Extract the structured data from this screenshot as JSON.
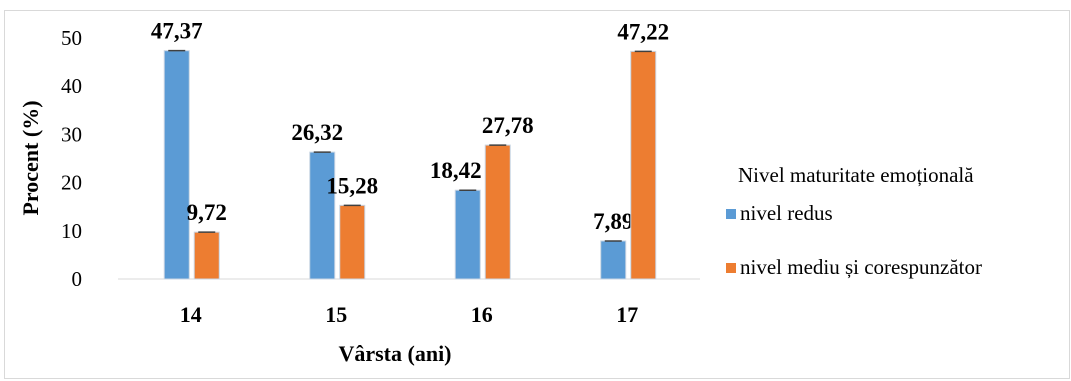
{
  "chart_data": {
    "type": "bar",
    "xlabel": "Vârsta (ani)",
    "ylabel": "Procent (%)",
    "ylim": [
      0,
      50
    ],
    "yticks": [
      0,
      10,
      20,
      30,
      40,
      50
    ],
    "grid": false,
    "legend_position": "right",
    "legend_title": "Nivel maturitate emoțională",
    "categories": [
      "14",
      "15",
      "16",
      "17"
    ],
    "series": [
      {
        "name": "nivel redus",
        "color": "#5b9bd5",
        "values": [
          47.37,
          26.32,
          18.42,
          7.89
        ],
        "labels": [
          "47,37",
          "26,32",
          "18,42",
          "7,89"
        ]
      },
      {
        "name": "nivel mediu și corespunzător",
        "color": "#ed7d31",
        "values": [
          9.72,
          15.28,
          27.78,
          47.22
        ],
        "labels": [
          "9,72",
          "15,28",
          "27,78",
          "47,22"
        ]
      }
    ]
  }
}
